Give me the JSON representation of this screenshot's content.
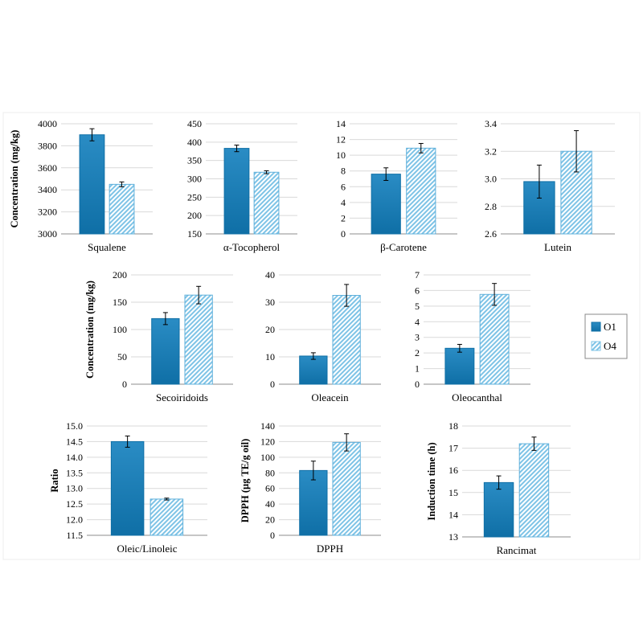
{
  "legend": {
    "items": [
      {
        "label": "O1",
        "color": "#1a7fb8",
        "style": "solid"
      },
      {
        "label": "O4",
        "color": "#7ec3e6",
        "style": "hatched"
      }
    ]
  },
  "chart_data": [
    {
      "type": "bar",
      "title": "Squalene",
      "xlabel": "Squalene",
      "ylabel": "Concentration (mg/kg)",
      "ylim": [
        3000,
        4000
      ],
      "yticks": [
        "3000",
        "3200",
        "3400",
        "3600",
        "3800",
        "4000"
      ],
      "series": [
        {
          "name": "O1",
          "values": [
            3900
          ],
          "errors": [
            55
          ]
        },
        {
          "name": "O4",
          "values": [
            3450
          ],
          "errors": [
            22
          ]
        }
      ]
    },
    {
      "type": "bar",
      "title": "α-Tocopherol",
      "xlabel": "α-Tocopherol",
      "ylabel": "",
      "ylim": [
        150,
        450
      ],
      "yticks": [
        "150",
        "200",
        "250",
        "300",
        "350",
        "400",
        "450"
      ],
      "series": [
        {
          "name": "O1",
          "values": [
            383
          ],
          "errors": [
            9
          ]
        },
        {
          "name": "O4",
          "values": [
            318
          ],
          "errors": [
            4
          ]
        }
      ]
    },
    {
      "type": "bar",
      "title": "β-Carotene",
      "xlabel": "β-Carotene",
      "ylabel": "",
      "ylim": [
        0,
        14
      ],
      "yticks": [
        "0",
        "2",
        "4",
        "6",
        "8",
        "10",
        "12",
        "14"
      ],
      "series": [
        {
          "name": "O1",
          "values": [
            7.6
          ],
          "errors": [
            0.8
          ]
        },
        {
          "name": "O4",
          "values": [
            10.9
          ],
          "errors": [
            0.6
          ]
        }
      ]
    },
    {
      "type": "bar",
      "title": "Lutein",
      "xlabel": "Lutein",
      "ylabel": "",
      "ylim": [
        2.6,
        3.4
      ],
      "yticks": [
        "2.6",
        "2.8",
        "3.0",
        "3.2",
        "3.4"
      ],
      "series": [
        {
          "name": "O1",
          "values": [
            2.98
          ],
          "errors": [
            0.12
          ]
        },
        {
          "name": "O4",
          "values": [
            3.2
          ],
          "errors": [
            0.15
          ]
        }
      ]
    },
    {
      "type": "bar",
      "title": "Secoiridoids",
      "xlabel": "Secoiridoids",
      "ylabel": "Concentration (mg/kg)",
      "ylim": [
        0,
        200
      ],
      "yticks": [
        "0",
        "50",
        "100",
        "150",
        "200"
      ],
      "series": [
        {
          "name": "O1",
          "values": [
            120
          ],
          "errors": [
            11
          ]
        },
        {
          "name": "O4",
          "values": [
            163
          ],
          "errors": [
            16
          ]
        }
      ]
    },
    {
      "type": "bar",
      "title": "Oleacein",
      "xlabel": "Oleacein",
      "ylabel": "",
      "ylim": [
        0,
        40
      ],
      "yticks": [
        "0",
        "10",
        "20",
        "30",
        "40"
      ],
      "series": [
        {
          "name": "O1",
          "values": [
            10.3
          ],
          "errors": [
            1.2
          ]
        },
        {
          "name": "O4",
          "values": [
            32.5
          ],
          "errors": [
            4
          ]
        }
      ]
    },
    {
      "type": "bar",
      "title": "Oleocanthal",
      "xlabel": "Oleocanthal",
      "ylabel": "",
      "ylim": [
        0,
        7
      ],
      "yticks": [
        "0",
        "1",
        "2",
        "3",
        "4",
        "5",
        "6",
        "7"
      ],
      "series": [
        {
          "name": "O1",
          "values": [
            2.3
          ],
          "errors": [
            0.25
          ]
        },
        {
          "name": "O4",
          "values": [
            5.75
          ],
          "errors": [
            0.7
          ]
        }
      ]
    },
    {
      "type": "bar",
      "title": "Oleic/Linoleic",
      "xlabel": "Oleic/Linoleic",
      "ylabel": "Ratio",
      "ylim": [
        11.5,
        15.0
      ],
      "yticks": [
        "11.5",
        "12.0",
        "12.5",
        "13.0",
        "13.5",
        "14.0",
        "14.5",
        "15.0"
      ],
      "series": [
        {
          "name": "O1",
          "values": [
            14.5
          ],
          "errors": [
            0.18
          ]
        },
        {
          "name": "O4",
          "values": [
            12.66
          ],
          "errors": [
            0.03
          ]
        }
      ]
    },
    {
      "type": "bar",
      "title": "DPPH",
      "xlabel": "DPPH",
      "ylabel": "DPPH (µg TE/g oil)",
      "ylim": [
        0,
        140
      ],
      "yticks": [
        "0",
        "20",
        "40",
        "60",
        "80",
        "100",
        "120",
        "140"
      ],
      "series": [
        {
          "name": "O1",
          "values": [
            83
          ],
          "errors": [
            12
          ]
        },
        {
          "name": "O4",
          "values": [
            119
          ],
          "errors": [
            11
          ]
        }
      ]
    },
    {
      "type": "bar",
      "title": "Rancimat",
      "xlabel": "Rancimat",
      "ylabel": "Induction time (h)",
      "ylim": [
        13,
        18
      ],
      "yticks": [
        "13",
        "14",
        "15",
        "16",
        "17",
        "18"
      ],
      "series": [
        {
          "name": "O1",
          "values": [
            15.45
          ],
          "errors": [
            0.3
          ]
        },
        {
          "name": "O4",
          "values": [
            17.2
          ],
          "errors": [
            0.3
          ]
        }
      ]
    }
  ]
}
